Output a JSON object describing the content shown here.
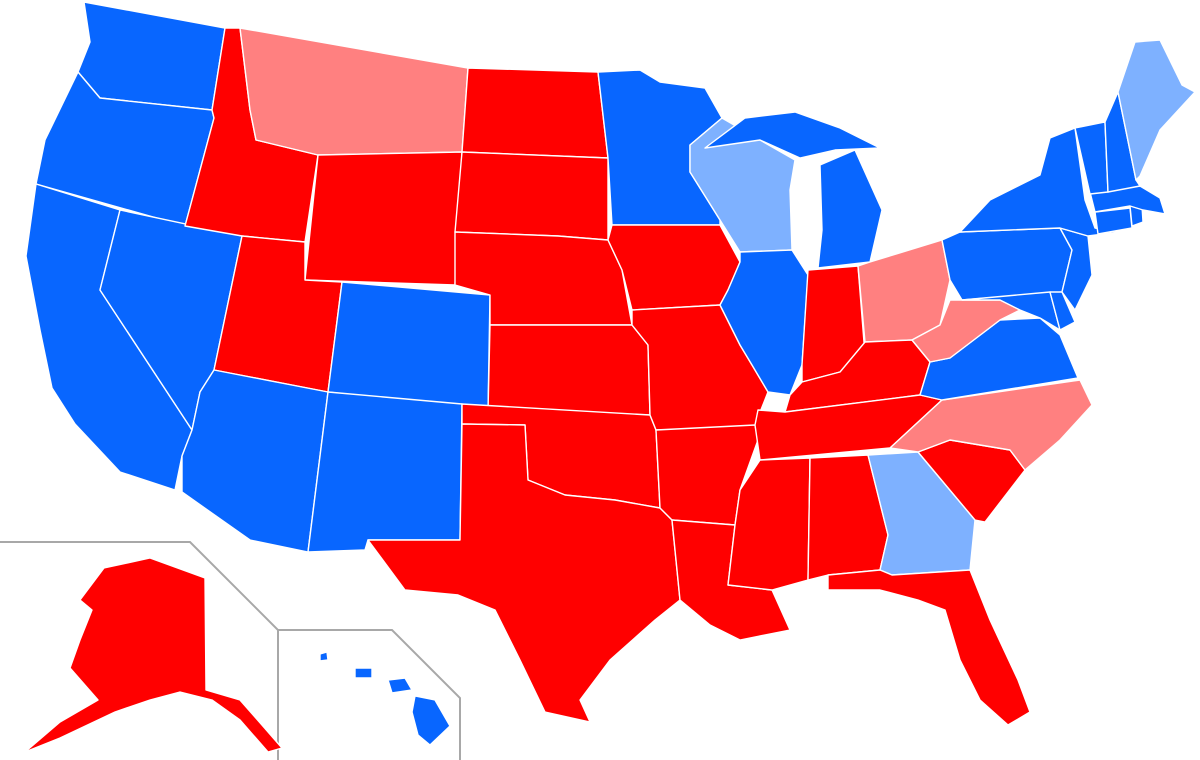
{
  "colors": {
    "solid_dem": "#0866ff",
    "lean_dem": "#7eb1ff",
    "solid_rep": "#ff0000",
    "lean_rep": "#ff8080",
    "border": "#ffffff",
    "inset_frame": "#a8a8a8",
    "background": "#ffffff"
  },
  "states": [
    {
      "id": "WA",
      "category": "solid_dem"
    },
    {
      "id": "OR",
      "category": "solid_dem"
    },
    {
      "id": "CA",
      "category": "solid_dem"
    },
    {
      "id": "NV",
      "category": "solid_dem"
    },
    {
      "id": "ID",
      "category": "solid_rep"
    },
    {
      "id": "MT",
      "category": "lean_rep"
    },
    {
      "id": "WY",
      "category": "solid_rep"
    },
    {
      "id": "UT",
      "category": "solid_rep"
    },
    {
      "id": "AZ",
      "category": "solid_dem"
    },
    {
      "id": "CO",
      "category": "solid_dem"
    },
    {
      "id": "NM",
      "category": "solid_dem"
    },
    {
      "id": "ND",
      "category": "solid_rep"
    },
    {
      "id": "SD",
      "category": "solid_rep"
    },
    {
      "id": "NE",
      "category": "solid_rep"
    },
    {
      "id": "KS",
      "category": "solid_rep"
    },
    {
      "id": "OK",
      "category": "solid_rep"
    },
    {
      "id": "TX",
      "category": "solid_rep"
    },
    {
      "id": "MN",
      "category": "solid_dem"
    },
    {
      "id": "IA",
      "category": "solid_rep"
    },
    {
      "id": "MO",
      "category": "solid_rep"
    },
    {
      "id": "AR",
      "category": "solid_rep"
    },
    {
      "id": "LA",
      "category": "solid_rep"
    },
    {
      "id": "WI",
      "category": "lean_dem"
    },
    {
      "id": "IL",
      "category": "solid_dem"
    },
    {
      "id": "MI",
      "category": "solid_dem"
    },
    {
      "id": "IN",
      "category": "solid_rep"
    },
    {
      "id": "OH",
      "category": "lean_rep"
    },
    {
      "id": "KY",
      "category": "solid_rep"
    },
    {
      "id": "TN",
      "category": "solid_rep"
    },
    {
      "id": "MS",
      "category": "solid_rep"
    },
    {
      "id": "AL",
      "category": "solid_rep"
    },
    {
      "id": "GA",
      "category": "lean_dem"
    },
    {
      "id": "FL",
      "category": "solid_rep"
    },
    {
      "id": "SC",
      "category": "solid_rep"
    },
    {
      "id": "NC",
      "category": "lean_rep"
    },
    {
      "id": "VA",
      "category": "solid_dem"
    },
    {
      "id": "WV",
      "category": "lean_rep"
    },
    {
      "id": "MD",
      "category": "solid_dem"
    },
    {
      "id": "DE",
      "category": "solid_dem"
    },
    {
      "id": "PA",
      "category": "solid_dem"
    },
    {
      "id": "NJ",
      "category": "solid_dem"
    },
    {
      "id": "NY",
      "category": "solid_dem"
    },
    {
      "id": "CT",
      "category": "solid_dem"
    },
    {
      "id": "RI",
      "category": "solid_dem"
    },
    {
      "id": "MA",
      "category": "solid_dem"
    },
    {
      "id": "VT",
      "category": "solid_dem"
    },
    {
      "id": "NH",
      "category": "solid_dem"
    },
    {
      "id": "ME",
      "category": "lean_dem"
    },
    {
      "id": "AK",
      "category": "solid_rep"
    },
    {
      "id": "HI",
      "category": "solid_dem"
    }
  ]
}
